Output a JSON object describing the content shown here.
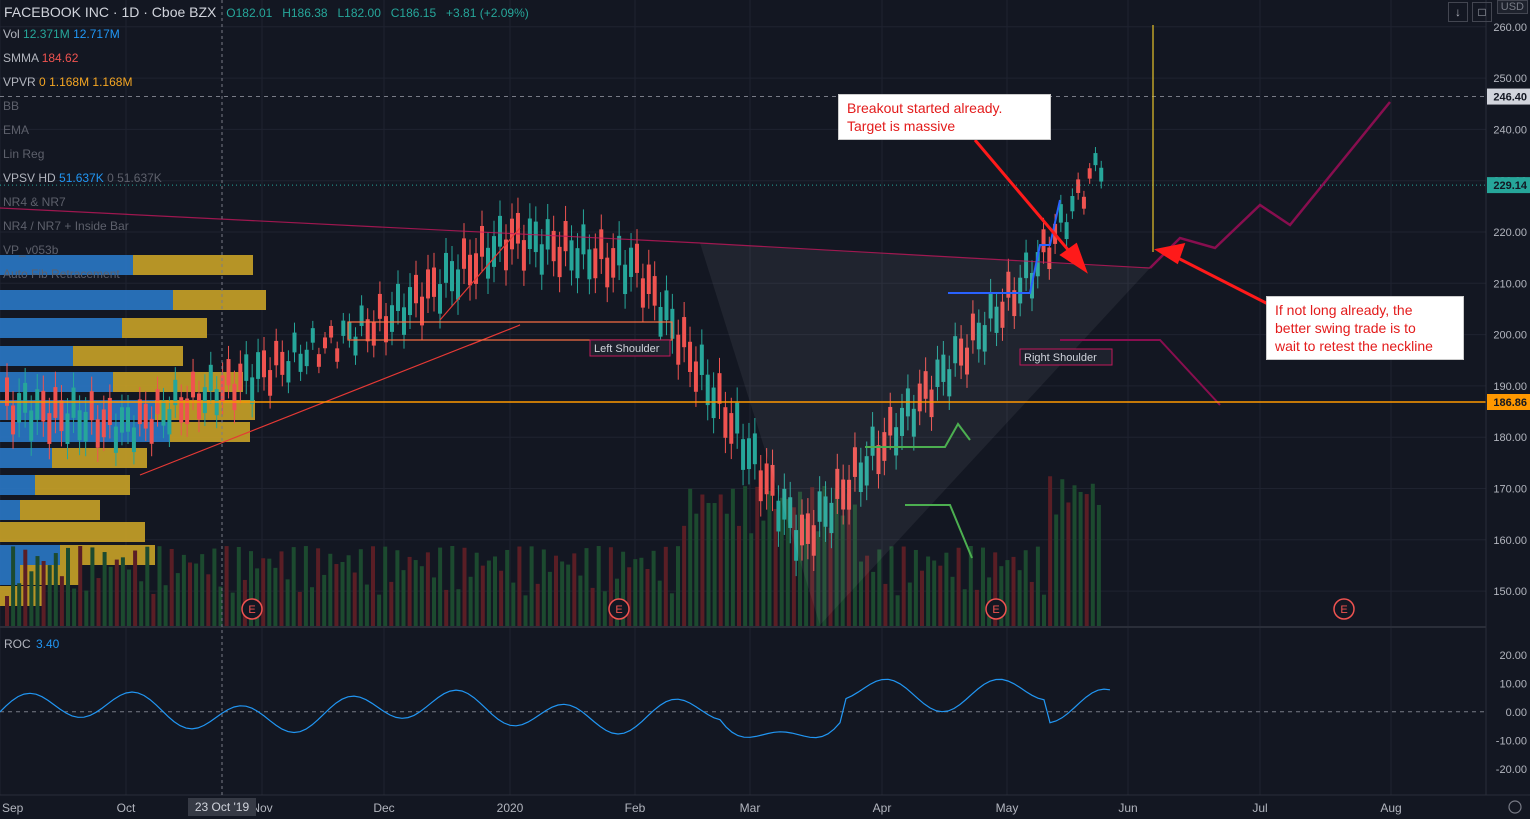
{
  "header": {
    "title": "FACEBOOK INC · 1D · Cboe BZX",
    "open": "O182.01",
    "high": "H186.38",
    "low": "L182.00",
    "close": "C186.15",
    "change": "+3.81 (+2.09%)"
  },
  "indicators": [
    {
      "name": "Vol",
      "values": "12.371M",
      "v2": "12.717M"
    },
    {
      "name": "SMMA",
      "values": "184.62",
      "v2": ""
    },
    {
      "name": "VPVR",
      "values": "0",
      "v2": "1.168M  1.168M"
    },
    {
      "name": "BB",
      "values": "",
      "v2": ""
    },
    {
      "name": "EMA",
      "values": "",
      "v2": ""
    },
    {
      "name": "Lin Reg",
      "values": "",
      "v2": ""
    },
    {
      "name": "VPSV HD",
      "values": "51.637K",
      "v2": "0  51.637K"
    },
    {
      "name": "NR4 & NR7",
      "values": "",
      "v2": ""
    },
    {
      "name": "NR4 / NR7 + Inside Bar",
      "values": "",
      "v2": ""
    },
    {
      "name": "VP_v053b",
      "values": "",
      "v2": ""
    },
    {
      "name": "Auto Fib Retracement",
      "values": "",
      "v2": ""
    }
  ],
  "roc": {
    "label": "ROC",
    "value": "3.40"
  },
  "currency": "USD",
  "price_tags": {
    "current": "229.14",
    "target": "246.40",
    "last": "186.86"
  },
  "annotations": {
    "breakout": [
      "Breakout started already.",
      "Target is massive"
    ],
    "swing": [
      "If not long already, the",
      "better swing trade is to",
      "wait to retest the neckline"
    ],
    "left_shoulder": "Left Shoulder",
    "right_shoulder": "Right Shoulder",
    "crosshair_date": "23 Oct '19"
  },
  "chart_data": {
    "type": "candlestick",
    "title": "FACEBOOK INC · 1D · Cboe BZX",
    "x_axis_labels": [
      "Sep",
      "Oct",
      "Nov",
      "Dec",
      "2020",
      "Feb",
      "Mar",
      "Apr",
      "May",
      "Jun",
      "Jul",
      "Aug"
    ],
    "y_axis_labels": [
      "150.00",
      "160.00",
      "170.00",
      "180.00",
      "190.00",
      "200.00",
      "210.00",
      "220.00",
      "230.00",
      "240.00",
      "250.00",
      "260.00"
    ],
    "ylim": [
      143,
      264
    ],
    "roc_axis_labels": [
      "20.00",
      "10.00",
      "0.00",
      "-10.00",
      "-20.00"
    ],
    "roc_ylim": [
      -25,
      23
    ],
    "earnings_markers": [
      "E",
      "E",
      "E",
      "E"
    ],
    "price_series": [
      {
        "period": "Sep 2019",
        "value": 186
      },
      {
        "period": "Oct 2019",
        "value": 182
      },
      {
        "period": "Nov 2019",
        "value": 193
      },
      {
        "period": "Dec 2019",
        "value": 203
      },
      {
        "period": "Jan 2020",
        "value": 219
      },
      {
        "period": "Feb 2020",
        "value": 213
      },
      {
        "period": "Mar 2020",
        "value": 160
      },
      {
        "period": "Apr 2020",
        "value": 183
      },
      {
        "period": "May 2020",
        "value": 212
      },
      {
        "period": "late May 2020",
        "value": 236
      }
    ],
    "levels": {
      "neckline": 215,
      "current": 229.14,
      "target": 246.4,
      "last": 186.86
    }
  }
}
